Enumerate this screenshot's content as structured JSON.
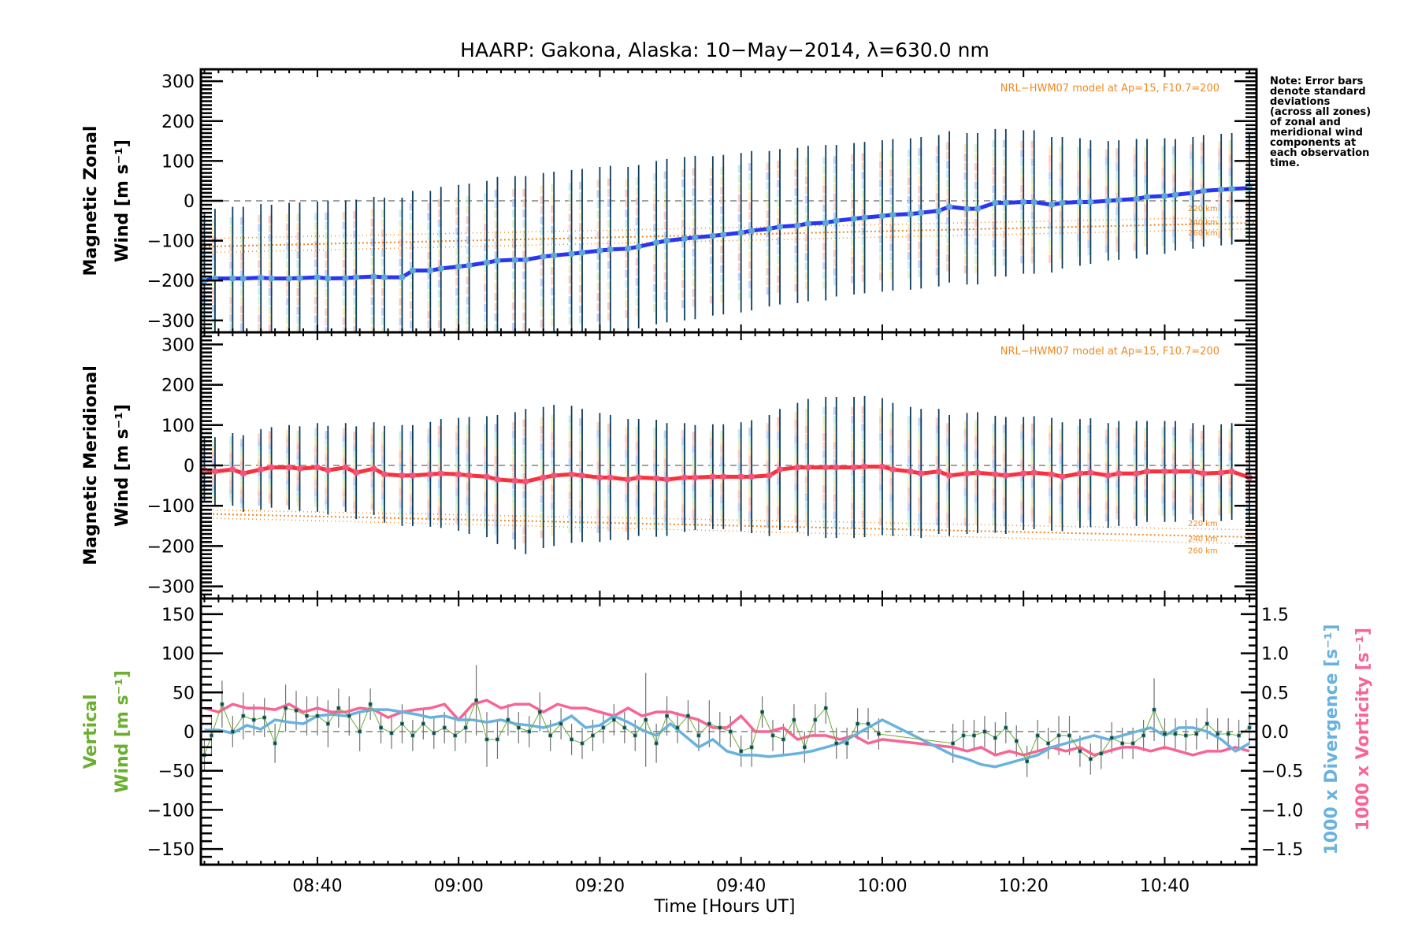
{
  "title": "HAARP: Gakona,  Alaska: 10−May−2014, λ=630.0 nm",
  "note": [
    "Note: Error bars",
    "denote standard",
    "deviations",
    "(across all zones)",
    "of zonal and",
    "meridional wind",
    "components at",
    "each observation",
    "time."
  ],
  "colors": {
    "zonal_line": "#2b35f0",
    "zonal_marker": "#5ea8d8",
    "meridional_line": "#f8323c",
    "meridional_marker": "#f2567c",
    "errorbar": "#0d3d5e",
    "model": "#f08a1e",
    "vertical": "#6aaf2e",
    "vertical_err": "#707070",
    "divergence": "#6ab2de",
    "vorticity": "#f86494",
    "zero_line": "#808080"
  },
  "chart_data": [
    {
      "type": "line",
      "name": "zonal-panel",
      "ylabel_line1": "Magnetic Zonal",
      "ylabel_line2": "Wind [m s⁻¹]",
      "ylim": [
        -330,
        330
      ],
      "yticks": [
        300,
        200,
        100,
        0,
        -100,
        -200,
        -300
      ],
      "ytick_labels": [
        "300",
        "200",
        "100",
        "0",
        "−100",
        "−200",
        "−300"
      ],
      "xlim_minutes_ut": [
        503.5,
        653
      ],
      "model_note": "NRL−HWM07 model at Ap=15, F10.7=200",
      "model_lines": [
        {
          "label": "220 km",
          "start": -95,
          "end": -40
        },
        {
          "label": "240 km",
          "start": -115,
          "end": -55
        },
        {
          "label": "260 km",
          "start": -130,
          "end": -70
        }
      ],
      "series": {
        "name": "Magnetic Zonal Wind",
        "x_minutes": [
          504,
          505.5,
          508,
          509.5,
          512,
          513.5,
          516,
          517.5,
          520,
          521.5,
          524,
          525.5,
          528,
          529.5,
          532,
          533.5,
          536,
          537.5,
          540,
          541.5,
          544,
          545.5,
          548,
          549.5,
          552,
          553.5,
          556,
          557.5,
          560,
          561.5,
          564,
          565.5,
          568,
          569.5,
          572,
          573.5,
          576,
          577.5,
          580,
          581.5,
          584,
          585.5,
          588,
          589.5,
          592,
          593.5,
          596,
          597.5,
          600,
          601.5,
          604,
          605.5,
          608,
          609.5,
          612,
          613.5,
          616,
          617.5,
          620,
          621.5,
          624,
          625.5,
          628,
          629.5,
          632,
          633.5,
          636,
          637.5,
          640,
          641.5,
          644,
          645.5,
          648,
          649.5,
          652
        ],
        "values": [
          -200,
          -195,
          -195,
          -195,
          -193,
          -195,
          -195,
          -194,
          -192,
          -195,
          -194,
          -192,
          -190,
          -192,
          -192,
          -175,
          -175,
          -170,
          -165,
          -162,
          -155,
          -150,
          -148,
          -148,
          -140,
          -137,
          -133,
          -130,
          -125,
          -122,
          -120,
          -115,
          -105,
          -100,
          -95,
          -92,
          -88,
          -85,
          -80,
          -75,
          -70,
          -65,
          -62,
          -57,
          -55,
          -50,
          -45,
          -42,
          -38,
          -35,
          -33,
          -30,
          -25,
          -15,
          -20,
          -20,
          -5,
          -5,
          -3,
          -3,
          -10,
          -5,
          -3,
          -3,
          0,
          2,
          5,
          10,
          12,
          15,
          20,
          25,
          28,
          30,
          32
        ],
        "std_half": [
          170,
          175,
          180,
          180,
          185,
          185,
          190,
          190,
          190,
          195,
          195,
          195,
          200,
          200,
          200,
          200,
          200,
          205,
          205,
          205,
          205,
          210,
          210,
          210,
          210,
          210,
          210,
          210,
          210,
          210,
          205,
          205,
          205,
          205,
          205,
          205,
          200,
          200,
          200,
          200,
          195,
          195,
          195,
          195,
          195,
          190,
          190,
          190,
          190,
          190,
          190,
          190,
          190,
          190,
          190,
          190,
          185,
          185,
          180,
          180,
          170,
          165,
          160,
          155,
          150,
          150,
          150,
          145,
          145,
          140,
          140,
          140,
          140,
          140,
          140
        ]
      }
    },
    {
      "type": "line",
      "name": "meridional-panel",
      "ylabel_line1": "Magnetic Meridional",
      "ylabel_line2": "Wind [m s⁻¹]",
      "ylim": [
        -330,
        330
      ],
      "yticks": [
        300,
        200,
        100,
        0,
        -100,
        -200,
        -300
      ],
      "ytick_labels": [
        "300",
        "200",
        "100",
        "0",
        "−100",
        "−200",
        "−300"
      ],
      "xlim_minutes_ut": [
        503.5,
        653
      ],
      "model_note": "NRL−HWM07 model at Ap=15, F10.7=200",
      "model_lines": [
        {
          "label": "220 km",
          "start": -110,
          "end": -160
        },
        {
          "label": "240 km",
          "start": -120,
          "end": -178
        },
        {
          "label": "260 km",
          "start": -130,
          "end": -195
        }
      ],
      "series": {
        "name": "Magnetic Meridional Wind",
        "x_minutes": [
          504,
          505.5,
          508,
          509.5,
          512,
          513.5,
          516,
          517.5,
          520,
          521.5,
          524,
          525.5,
          528,
          529.5,
          532,
          533.5,
          536,
          537.5,
          540,
          541.5,
          544,
          545.5,
          548,
          549.5,
          552,
          553.5,
          556,
          557.5,
          560,
          561.5,
          564,
          565.5,
          568,
          569.5,
          572,
          573.5,
          576,
          577.5,
          580,
          581.5,
          584,
          585.5,
          588,
          589.5,
          592,
          593.5,
          596,
          597.5,
          600,
          601.5,
          604,
          605.5,
          608,
          609.5,
          612,
          613.5,
          616,
          617.5,
          620,
          621.5,
          624,
          625.5,
          628,
          629.5,
          632,
          633.5,
          636,
          637.5,
          640,
          641.5,
          644,
          645.5,
          648,
          649.5,
          652
        ],
        "values": [
          -12,
          -15,
          -10,
          -20,
          -10,
          -5,
          -5,
          -8,
          -5,
          -12,
          -5,
          -18,
          -8,
          -22,
          -25,
          -25,
          -22,
          -20,
          -22,
          -25,
          -28,
          -35,
          -38,
          -40,
          -30,
          -25,
          -22,
          -25,
          -30,
          -30,
          -35,
          -30,
          -32,
          -35,
          -30,
          -30,
          -28,
          -28,
          -28,
          -28,
          -25,
          -10,
          -5,
          -5,
          -5,
          -5,
          -5,
          -3,
          -3,
          -10,
          -15,
          -20,
          -15,
          -25,
          -20,
          -18,
          -22,
          -25,
          -20,
          -18,
          -22,
          -28,
          -20,
          -18,
          -25,
          -20,
          -20,
          -15,
          -15,
          -15,
          -15,
          -20,
          -18,
          -15,
          -30
        ],
        "std_half": [
          80,
          85,
          90,
          95,
          100,
          100,
          105,
          105,
          110,
          110,
          110,
          115,
          115,
          120,
          125,
          125,
          130,
          135,
          140,
          145,
          150,
          160,
          170,
          180,
          175,
          175,
          170,
          165,
          160,
          155,
          150,
          145,
          145,
          140,
          135,
          130,
          130,
          130,
          135,
          140,
          150,
          150,
          160,
          170,
          175,
          175,
          175,
          175,
          170,
          165,
          160,
          160,
          155,
          150,
          150,
          150,
          145,
          145,
          140,
          140,
          140,
          135,
          135,
          135,
          130,
          130,
          130,
          125,
          125,
          125,
          120,
          120,
          120,
          120,
          120
        ]
      }
    },
    {
      "type": "line",
      "name": "vertical-panel",
      "ylabel_line1": "Vertical",
      "ylabel_line2": "Wind [m s⁻¹]",
      "right_ylabel_divergence": "1000 x Divergence [s⁻¹]",
      "right_ylabel_vorticity": "1000 x Vorticity [s⁻¹]",
      "ylim": [
        -170,
        170
      ],
      "yticks": [
        150,
        100,
        50,
        0,
        -50,
        -100,
        -150
      ],
      "ytick_labels": [
        "150",
        "100",
        "50",
        "0",
        "−50",
        "−100",
        "−150"
      ],
      "y2lim": [
        -1.7,
        1.7
      ],
      "y2ticks": [
        1.5,
        1.0,
        0.5,
        0.0,
        -0.5,
        -1.0,
        -1.5
      ],
      "y2tick_labels": [
        "1.5",
        "1.0",
        "0.5",
        "0.0",
        "−0.5",
        "−1.0",
        "−1.5"
      ],
      "xlim_minutes_ut": [
        503.5,
        653
      ],
      "xticks_minutes": [
        520,
        540,
        560,
        580,
        600,
        620,
        640
      ],
      "xtick_labels": [
        "08:40",
        "09:00",
        "09:20",
        "09:40",
        "10:00",
        "10:20",
        "10:40"
      ],
      "xlabel": "Time [Hours UT]",
      "vertical_wind": {
        "x_minutes": [
          504,
          505,
          506.5,
          508,
          509.5,
          511,
          512.5,
          514,
          515.5,
          517,
          518.5,
          520,
          521.5,
          523,
          524.5,
          526,
          527.5,
          529,
          530.5,
          532,
          533.5,
          535,
          536.5,
          538,
          539.5,
          541,
          542.5,
          544,
          545.5,
          547,
          548.5,
          550,
          551.5,
          553,
          554.5,
          556,
          557.5,
          559,
          560.5,
          562,
          563.5,
          565,
          566.5,
          568,
          569.5,
          571,
          572.5,
          574,
          575.5,
          577,
          578.5,
          580,
          581.5,
          583,
          584.5,
          586,
          587.5,
          589,
          590.5,
          592,
          593.5,
          595,
          596.5,
          598,
          599.5,
          610,
          611.5,
          613,
          614.5,
          616,
          617.5,
          619,
          620.5,
          622,
          623.5,
          625,
          626.5,
          628,
          629.5,
          631,
          632.5,
          634,
          635.5,
          637,
          638.5,
          640,
          641.5,
          643,
          644.5,
          646,
          647.5,
          649,
          650.5,
          652
        ],
        "values": [
          -30,
          -5,
          35,
          0,
          20,
          15,
          18,
          -15,
          30,
          27,
          20,
          20,
          10,
          30,
          20,
          0,
          35,
          5,
          -2,
          10,
          -5,
          10,
          -2,
          5,
          -5,
          5,
          40,
          -10,
          -10,
          15,
          5,
          0,
          25,
          -5,
          10,
          -10,
          -15,
          -5,
          5,
          15,
          5,
          -5,
          15,
          -15,
          20,
          5,
          20,
          -5,
          10,
          5,
          0,
          -25,
          -20,
          25,
          -5,
          -10,
          15,
          -20,
          15,
          30,
          -15,
          -15,
          10,
          10,
          -3,
          -15,
          -5,
          -5,
          0,
          -8,
          5,
          -12,
          -38,
          -5,
          -15,
          -5,
          -5,
          -25,
          -35,
          -28,
          -8,
          -15,
          -15,
          -5,
          28,
          -3,
          -3,
          -5,
          -3,
          10,
          -3,
          -3,
          -5,
          5,
          0,
          2
        ],
        "err_half": [
          20,
          25,
          30,
          20,
          30,
          20,
          25,
          25,
          30,
          25,
          25,
          25,
          30,
          25,
          25,
          25,
          20,
          20,
          20,
          25,
          20,
          20,
          20,
          20,
          20,
          20,
          45,
          35,
          25,
          20,
          20,
          20,
          25,
          20,
          20,
          20,
          20,
          20,
          20,
          20,
          20,
          20,
          60,
          25,
          25,
          20,
          20,
          20,
          30,
          20,
          20,
          20,
          25,
          20,
          20,
          20,
          20,
          20,
          20,
          20,
          20,
          20,
          20,
          20,
          20,
          25,
          20,
          20,
          20,
          20,
          20,
          20,
          20,
          20,
          20,
          25,
          25,
          20,
          20,
          20,
          20,
          20,
          20,
          20,
          40,
          20,
          20,
          20,
          20,
          20,
          20,
          20,
          20,
          20,
          20,
          20
        ],
        "std_half_note": ""
      },
      "divergence": {
        "x_minutes": [
          504,
          506,
          508,
          510,
          512,
          514,
          516,
          518,
          520,
          522,
          524,
          526,
          528,
          530,
          532,
          534,
          536,
          538,
          540,
          542,
          544,
          546,
          548,
          550,
          552,
          554,
          556,
          558,
          560,
          562,
          564,
          566,
          568,
          570,
          572,
          574,
          576,
          578,
          580,
          582,
          584,
          586,
          588,
          590,
          592,
          594,
          596,
          598,
          600,
          610,
          612,
          614,
          616,
          618,
          620,
          622,
          624,
          626,
          628,
          630,
          632,
          634,
          636,
          638,
          640,
          642,
          644,
          646,
          648,
          650,
          652
        ],
        "values": [
          0.02,
          0.02,
          -0.02,
          0.08,
          0.03,
          0.15,
          0.12,
          0.1,
          0.2,
          0.22,
          0.2,
          0.25,
          0.28,
          0.28,
          0.25,
          0.22,
          0.18,
          0.2,
          0.15,
          0.15,
          0.12,
          0.15,
          0.1,
          0.08,
          0.05,
          0.1,
          0.2,
          0.05,
          0.08,
          0.2,
          0.12,
          0.02,
          -0.05,
          0.1,
          -0.05,
          -0.2,
          -0.1,
          -0.25,
          -0.3,
          -0.3,
          -0.32,
          -0.3,
          -0.28,
          -0.25,
          -0.2,
          -0.15,
          -0.05,
          0.05,
          0.15,
          -0.3,
          -0.35,
          -0.42,
          -0.45,
          -0.4,
          -0.35,
          -0.3,
          -0.2,
          -0.15,
          -0.1,
          -0.05,
          -0.1,
          -0.05,
          0.0,
          0.05,
          -0.05,
          0.05,
          0.05,
          0.0,
          -0.1,
          -0.25,
          -0.15
        ],
        "line_note": ""
      },
      "vorticity": {
        "x_minutes": [
          504,
          506,
          508,
          510,
          512,
          514,
          516,
          518,
          520,
          522,
          524,
          526,
          528,
          530,
          532,
          534,
          536,
          538,
          540,
          542,
          544,
          546,
          548,
          550,
          552,
          554,
          556,
          558,
          560,
          562,
          564,
          566,
          568,
          570,
          572,
          574,
          576,
          578,
          580,
          582,
          584,
          586,
          588,
          590,
          592,
          594,
          596,
          598,
          600,
          610,
          612,
          614,
          616,
          618,
          620,
          622,
          624,
          626,
          628,
          630,
          632,
          634,
          636,
          638,
          640,
          642,
          644,
          646,
          648,
          650,
          652
        ],
        "values": [
          0.3,
          0.25,
          0.35,
          0.3,
          0.3,
          0.28,
          0.35,
          0.25,
          0.3,
          0.25,
          0.25,
          0.3,
          0.28,
          0.18,
          0.25,
          0.28,
          0.3,
          0.35,
          0.15,
          0.35,
          0.4,
          0.3,
          0.35,
          0.35,
          0.25,
          0.35,
          0.3,
          0.3,
          0.25,
          0.2,
          0.3,
          0.2,
          0.25,
          0.25,
          0.2,
          0.15,
          0.05,
          0.05,
          0.2,
          0.0,
          0.0,
          0.05,
          -0.1,
          -0.05,
          -0.05,
          -0.1,
          -0.05,
          -0.15,
          -0.1,
          -0.2,
          -0.25,
          -0.2,
          -0.3,
          -0.25,
          -0.3,
          -0.25,
          -0.2,
          -0.25,
          -0.2,
          -0.3,
          -0.25,
          -0.2,
          -0.2,
          -0.25,
          -0.2,
          -0.25,
          -0.3,
          -0.25,
          -0.25,
          -0.2,
          -0.25
        ]
      }
    }
  ]
}
